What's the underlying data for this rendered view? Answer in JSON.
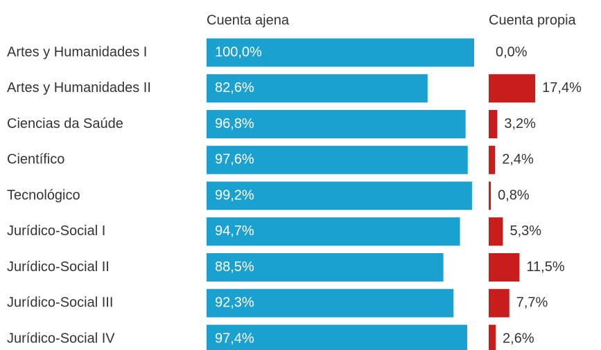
{
  "chart_data": {
    "type": "bar",
    "orientation": "horizontal",
    "layout": "split",
    "categories": [
      "Artes y Humanidades I",
      "Artes y Humanidades II",
      "Ciencias da Saúde",
      "Científico",
      "Tecnológico",
      "Jurídico-Social I",
      "Jurídico-Social II",
      "Jurídico-Social III",
      "Jurídico-Social IV"
    ],
    "series": [
      {
        "name": "Cuenta ajena",
        "color": "#1aa1cf",
        "values": [
          100,
          82.6,
          96.8,
          97.6,
          99.2,
          94.7,
          88.5,
          92.3,
          97.4
        ],
        "value_labels": [
          "100,0%",
          "82,6%",
          "96,8%",
          "97,6%",
          "99,2%",
          "94,7%",
          "88,5%",
          "92,3%",
          "97,4%"
        ]
      },
      {
        "name": "Cuenta propia",
        "color": "#c71e1d",
        "values": [
          0,
          17.4,
          3.2,
          2.4,
          0.8,
          5.3,
          11.5,
          7.7,
          2.6
        ],
        "value_labels": [
          "0,0%",
          "17,4%",
          "3,2%",
          "2,4%",
          "0,8%",
          "5,3%",
          "11,5%",
          "7,7%",
          "2,6%"
        ]
      }
    ]
  }
}
